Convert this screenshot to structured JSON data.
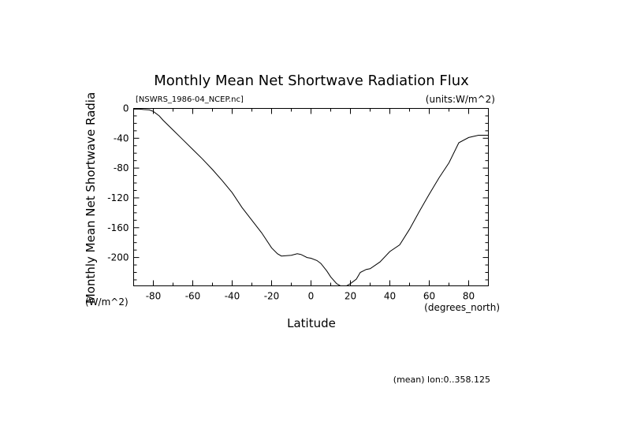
{
  "chart_data": {
    "type": "line",
    "title": "Monthly Mean Net Shortwave Radiation Flux",
    "subtitle_left": "[NSWRS_1986-04_NCEP.nc]",
    "subtitle_right": "(units:W/m^2)",
    "xlabel": "Latitude",
    "x_units": "(degrees_north)",
    "ylabel": "Monthly Mean Net Shortwave Radia",
    "y_units": "(W/m^2)",
    "footnote": "(mean) lon:0..358.125",
    "xlim": [
      -90,
      90
    ],
    "ylim": [
      -238,
      0
    ],
    "x_ticks": [
      -80,
      -60,
      -40,
      -20,
      0,
      20,
      40,
      60,
      80
    ],
    "x_tick_labels": [
      "-80",
      "-60",
      "-40",
      "-20",
      "0",
      "20",
      "40",
      "60",
      "80"
    ],
    "y_ticks": [
      0,
      -40,
      -80,
      -120,
      -160,
      -200
    ],
    "y_tick_labels": [
      "0",
      "-40",
      "-80",
      "-120",
      "-160",
      "-200"
    ],
    "series": [
      {
        "name": "NSWRS",
        "x": [
          -90,
          -87,
          -85,
          -82,
          -80,
          -77,
          -75,
          -70,
          -65,
          -60,
          -55,
          -50,
          -45,
          -40,
          -35,
          -30,
          -25,
          -20,
          -17,
          -15,
          -10,
          -7,
          -5,
          -2,
          0,
          3,
          5,
          8,
          10,
          13,
          15,
          17,
          18,
          20,
          23,
          25,
          28,
          30,
          35,
          40,
          45,
          50,
          55,
          60,
          65,
          70,
          75,
          80,
          85,
          90
        ],
        "y": [
          -1,
          -1,
          -1.5,
          -2,
          -4,
          -10,
          -16,
          -29,
          -42,
          -55,
          -68,
          -82,
          -97,
          -113,
          -133,
          -150,
          -167,
          -187,
          -195,
          -198,
          -197,
          -195,
          -196,
          -200,
          -201,
          -204,
          -208,
          -218,
          -226,
          -235,
          -238,
          -238,
          -238,
          -235,
          -229,
          -220,
          -216,
          -215,
          -206,
          -192,
          -183,
          -162,
          -138,
          -115,
          -93,
          -73,
          -46,
          -39,
          -36,
          -36
        ]
      }
    ]
  }
}
